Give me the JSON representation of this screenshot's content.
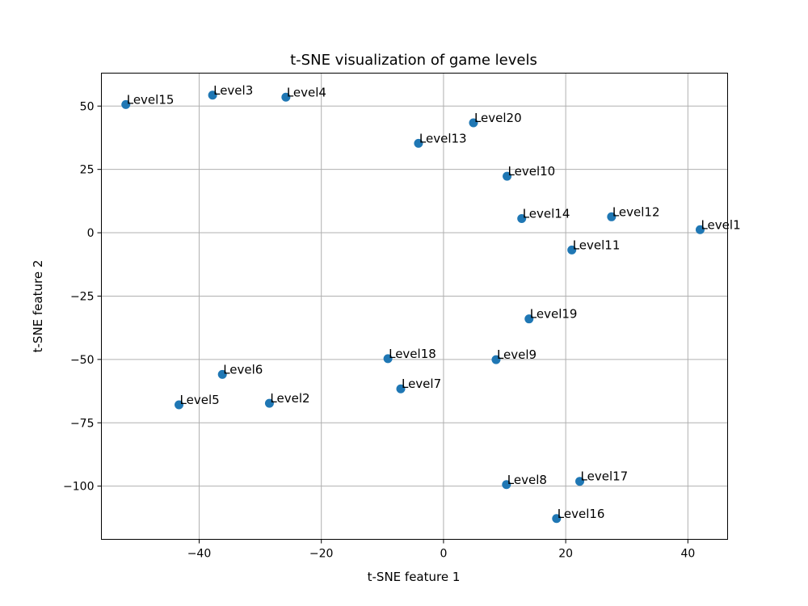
{
  "chart_data": {
    "type": "scatter",
    "title": "t-SNE visualization of game levels",
    "xlabel": "t-SNE feature 1",
    "ylabel": "t-SNE feature 2",
    "xlim": [
      -56,
      46.5
    ],
    "ylim": [
      -121,
      63
    ],
    "xticks": [
      -40,
      -20,
      0,
      20,
      40
    ],
    "yticks": [
      50,
      25,
      0,
      -25,
      -50,
      -75,
      -100
    ],
    "xtick_labels": [
      "−40",
      "−20",
      "0",
      "20",
      "40"
    ],
    "ytick_labels": [
      "50",
      "25",
      "0",
      "−25",
      "−50",
      "−75",
      "−100"
    ],
    "grid": true,
    "marker_color": "#1f77b4",
    "points": [
      {
        "label": "Level1",
        "x": 42.0,
        "y": 1.2
      },
      {
        "label": "Level2",
        "x": -28.5,
        "y": -67.3
      },
      {
        "label": "Level3",
        "x": -37.8,
        "y": 54.3
      },
      {
        "label": "Level4",
        "x": -25.8,
        "y": 53.5
      },
      {
        "label": "Level5",
        "x": -43.3,
        "y": -67.9
      },
      {
        "label": "Level6",
        "x": -36.2,
        "y": -55.9
      },
      {
        "label": "Level7",
        "x": -7.0,
        "y": -61.6
      },
      {
        "label": "Level8",
        "x": 10.3,
        "y": -99.4
      },
      {
        "label": "Level9",
        "x": 8.6,
        "y": -50.1
      },
      {
        "label": "Level10",
        "x": 10.4,
        "y": 22.3
      },
      {
        "label": "Level11",
        "x": 21.0,
        "y": -6.8
      },
      {
        "label": "Level12",
        "x": 27.5,
        "y": 6.3
      },
      {
        "label": "Level13",
        "x": -4.1,
        "y": 35.3
      },
      {
        "label": "Level14",
        "x": 12.8,
        "y": 5.6
      },
      {
        "label": "Level15",
        "x": -52.0,
        "y": 50.6
      },
      {
        "label": "Level16",
        "x": 18.5,
        "y": -112.8
      },
      {
        "label": "Level17",
        "x": 22.3,
        "y": -98.1
      },
      {
        "label": "Level18",
        "x": -9.1,
        "y": -49.7
      },
      {
        "label": "Level19",
        "x": 14.0,
        "y": -34.0
      },
      {
        "label": "Level20",
        "x": 4.9,
        "y": 43.4
      }
    ]
  }
}
